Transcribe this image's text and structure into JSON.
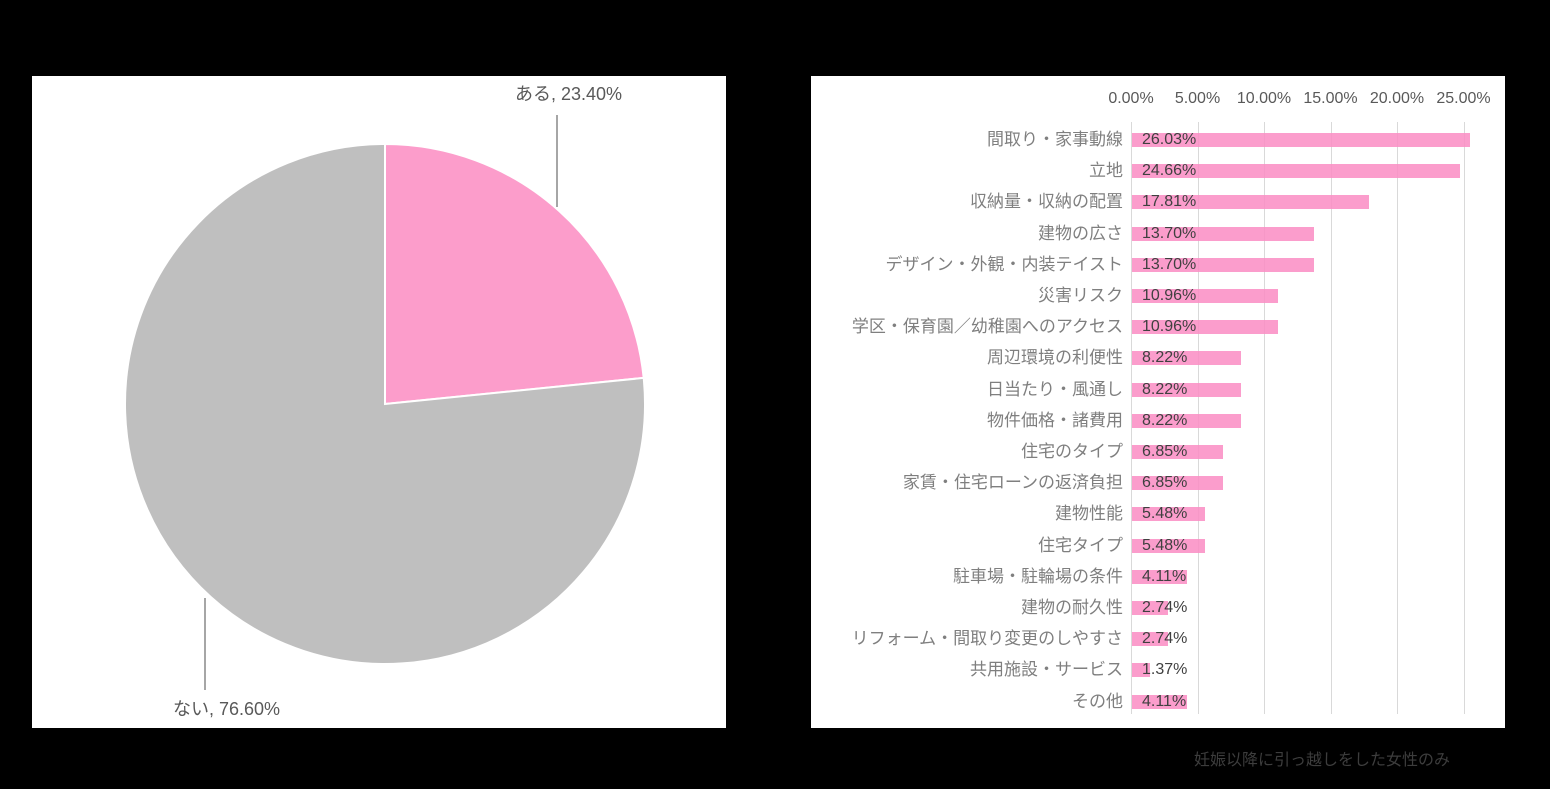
{
  "colors": {
    "background": "#000000",
    "panel": "#ffffff",
    "pink": "#fc9dcb",
    "gray": "#bfbfbf",
    "gridline": "#d9d9d9",
    "leader_line": "#a6a6a6",
    "pie_label_text": "#595959",
    "axis_tick_text": "#595959",
    "category_text": "#7f7f7f",
    "value_text": "#404040",
    "footnote_text": "#3d3d3d"
  },
  "caption": "妊娠以降に引っ越しをした女性のみ",
  "chart_data": [
    {
      "type": "pie",
      "title": "",
      "labels": [
        "ある",
        "ない"
      ],
      "values": [
        23.4,
        76.6
      ],
      "slice_label_texts": [
        "ある, 23.40%",
        "ない, 76.60%"
      ],
      "colors": [
        "#fc9dcb",
        "#bfbfbf"
      ],
      "start_angle": "12-oclock-clockwise",
      "legend": "none"
    },
    {
      "type": "bar",
      "orientation": "horizontal",
      "title": "",
      "xlabel": "",
      "ylabel": "",
      "grid": true,
      "xlim": [
        0,
        25
      ],
      "bar_color": "#fc9dcb",
      "xticks": {
        "values": [
          0,
          5,
          10,
          15,
          20,
          25
        ],
        "labels": [
          "0.00%",
          "5.00%",
          "10.00%",
          "15.00%",
          "20.00%",
          "25.00%"
        ]
      },
      "categories": [
        "間取り・家事動線",
        "立地",
        "収納量・収納の配置",
        "建物の広さ",
        "デザイン・外観・内装テイスト",
        "災害リスク",
        "学区・保育園／幼稚園へのアクセス",
        "周辺環境の利便性",
        "日当たり・風通し",
        "物件価格・諸費用",
        "住宅のタイプ",
        "家賃・住宅ローンの返済負担",
        "建物性能",
        "住宅タイプ",
        "駐車場・駐輪場の条件",
        "建物の耐久性",
        "リフォーム・間取り変更のしやすさ",
        "共用施設・サービス",
        "その他"
      ],
      "values": [
        26.03,
        24.66,
        17.81,
        13.7,
        13.7,
        10.96,
        10.96,
        8.22,
        8.22,
        8.22,
        6.85,
        6.85,
        5.48,
        5.48,
        4.11,
        2.74,
        2.74,
        1.37,
        4.11
      ],
      "value_labels": [
        "26.03%",
        "24.66%",
        "17.81%",
        "13.70%",
        "13.70%",
        "10.96%",
        "10.96%",
        "8.22%",
        "8.22%",
        "8.22%",
        "6.85%",
        "6.85%",
        "5.48%",
        "5.48%",
        "4.11%",
        "2.74%",
        "2.74%",
        "1.37%",
        "4.11%"
      ]
    }
  ]
}
